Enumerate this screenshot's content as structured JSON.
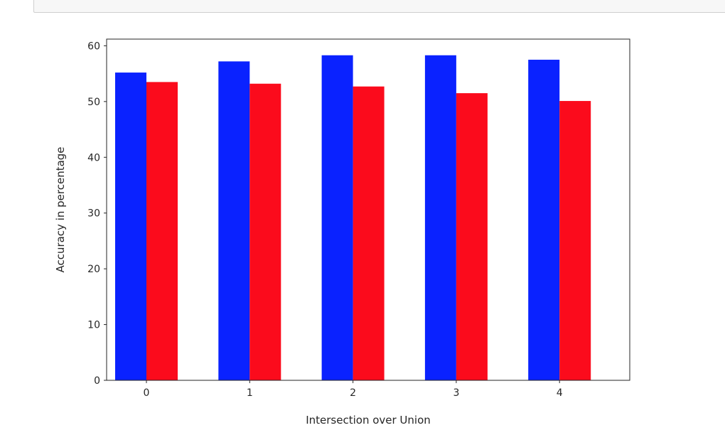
{
  "chart_data": {
    "type": "bar",
    "title": "",
    "xlabel": "Intersection over Union",
    "ylabel": "Accuracy in percentage",
    "categories": [
      "0",
      "1",
      "2",
      "3",
      "4"
    ],
    "series": [
      {
        "values": [
          55.2,
          57.2,
          58.3,
          58.3,
          57.5
        ],
        "color": "#0a22ff"
      },
      {
        "values": [
          53.5,
          53.2,
          52.7,
          51.5,
          50.1
        ],
        "color": "#fb0b1c"
      }
    ],
    "ylim": [
      0,
      61.2
    ],
    "yticks": [
      0,
      10,
      20,
      30,
      40,
      50,
      60
    ],
    "grid": false,
    "legend": "none"
  }
}
